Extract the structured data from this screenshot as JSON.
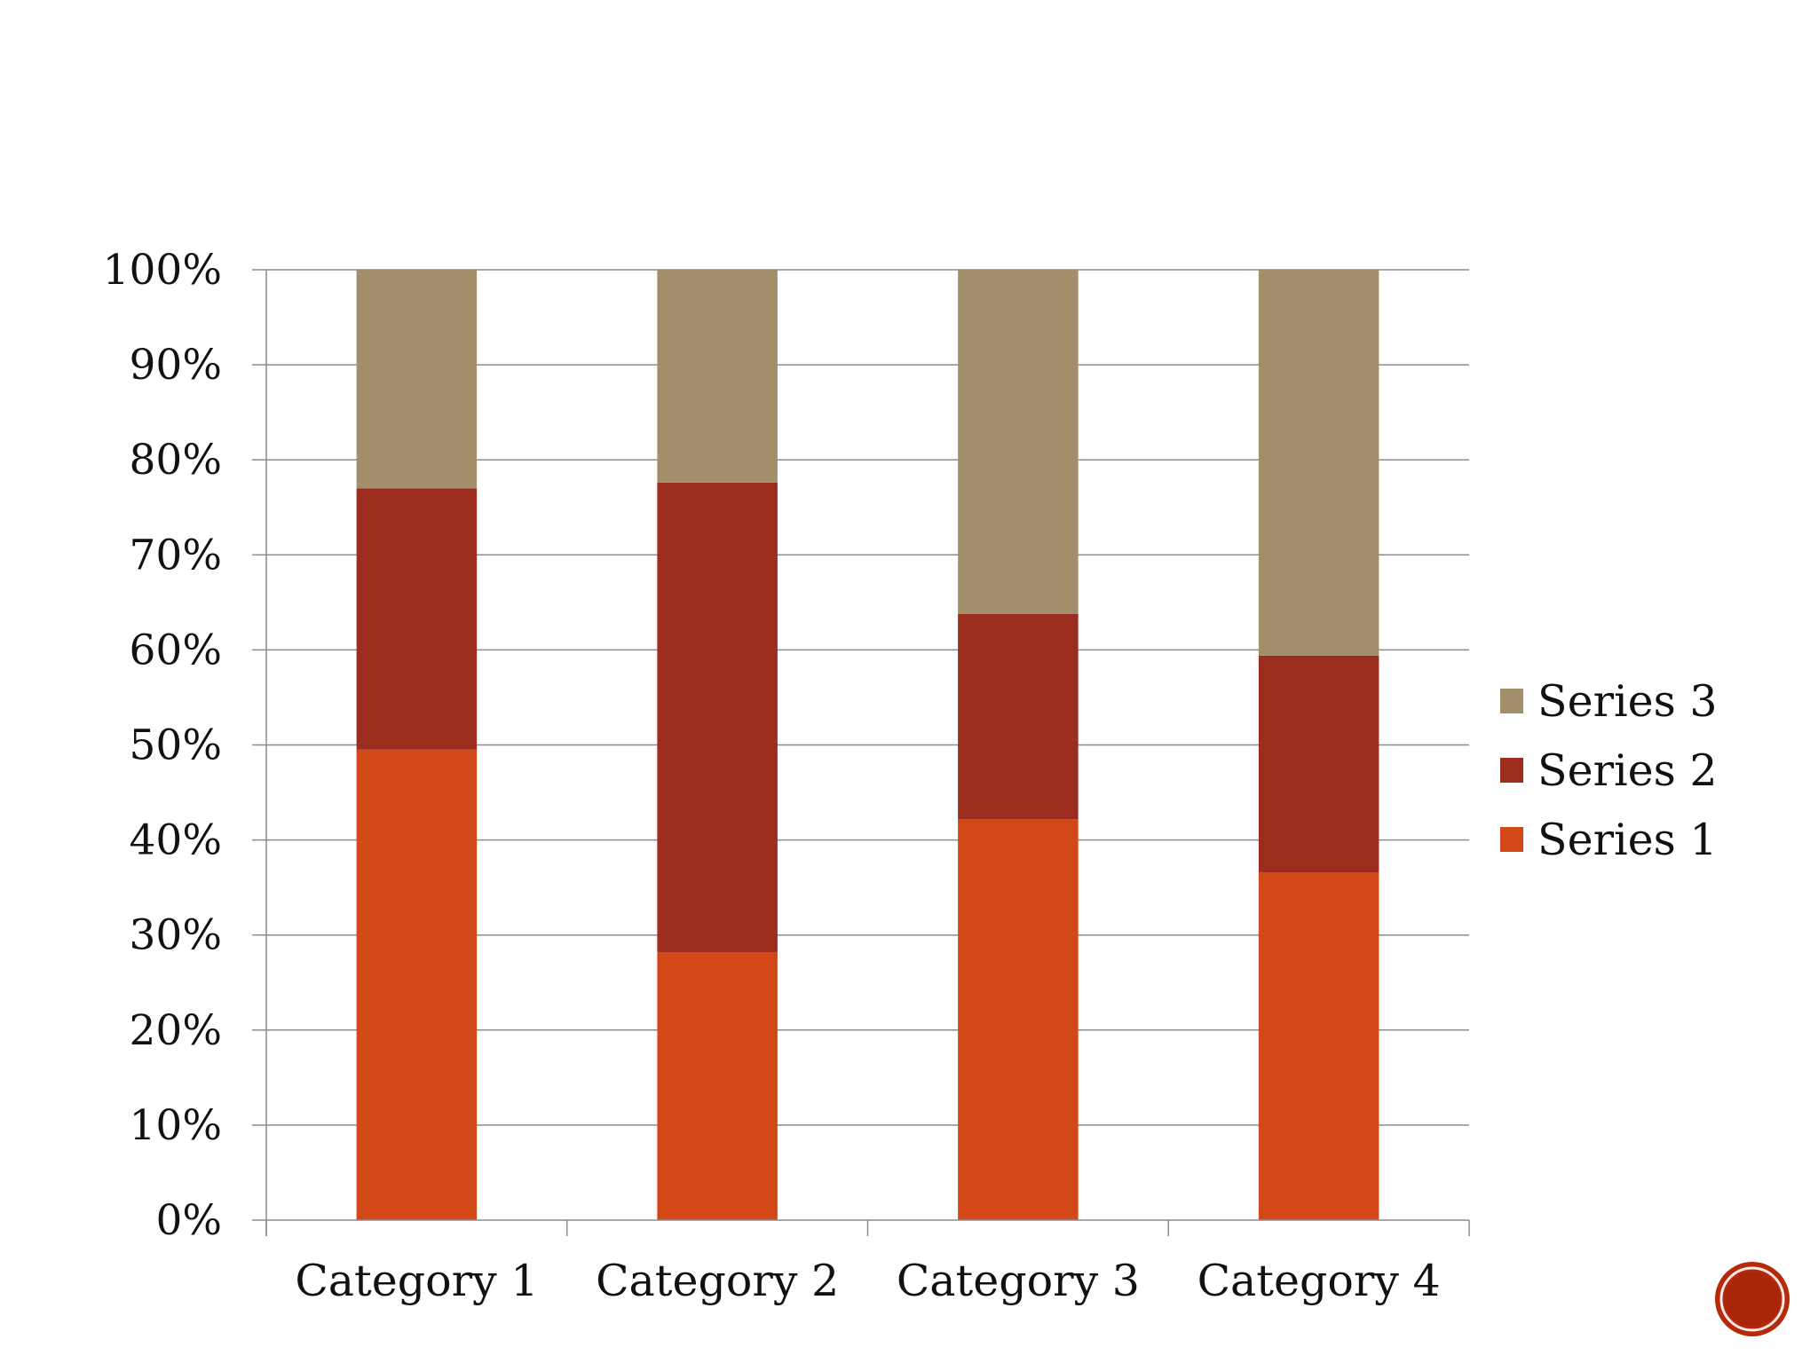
{
  "chart_data": {
    "type": "bar",
    "stacked": true,
    "normalized": true,
    "categories": [
      "Category 1",
      "Category 2",
      "Category 3",
      "Category 4"
    ],
    "series": [
      {
        "name": "Series 1",
        "values": [
          49.5,
          28.2,
          42.2,
          36.6
        ],
        "color": "#d34817"
      },
      {
        "name": "Series 2",
        "values": [
          27.5,
          49.4,
          21.6,
          22.8
        ],
        "color": "#9b2d1f"
      },
      {
        "name": "Series 3",
        "values": [
          23.0,
          22.4,
          36.2,
          40.6
        ],
        "color": "#a28e6a"
      }
    ],
    "y_ticks": [
      "0%",
      "10%",
      "20%",
      "30%",
      "40%",
      "50%",
      "60%",
      "70%",
      "80%",
      "90%",
      "100%"
    ],
    "ylim": [
      0,
      100
    ],
    "grid": true,
    "legend": "right",
    "title": "",
    "xlabel": "",
    "ylabel": ""
  },
  "colors": {
    "gridline": "#8c8c8c",
    "slide_badge": "#b62a0c"
  }
}
